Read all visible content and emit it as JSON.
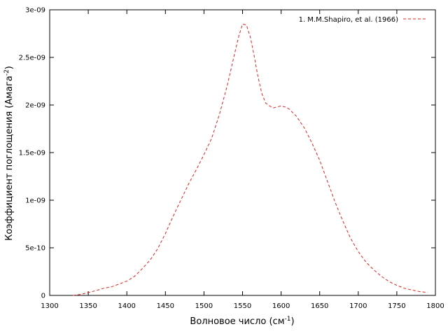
{
  "chart_data": {
    "type": "line",
    "title": "",
    "xlabel": "Волновое число (см",
    "xlabel_sup": "-1",
    "xlabel_end": ")",
    "ylabel": "Коэффициент поглощения (Амага",
    "ylabel_sup": "-2",
    "ylabel_end": ")",
    "xlim": [
      1300,
      1800
    ],
    "ylim": [
      0,
      3e-09
    ],
    "x_ticks": [
      1300,
      1350,
      1400,
      1450,
      1500,
      1550,
      1600,
      1650,
      1700,
      1750,
      1800
    ],
    "x_tick_labels": [
      "1300",
      "1350",
      "1400",
      "1450",
      "1500",
      "1550",
      "1600",
      "1650",
      "1700",
      "1750",
      "1800"
    ],
    "y_ticks": [
      0,
      5e-10,
      1e-09,
      1.5e-09,
      2e-09,
      2.5e-09,
      3e-09
    ],
    "y_tick_labels": [
      "0",
      "5e-10",
      "1e-09",
      "1.5e-09",
      "2e-09",
      "2.5e-09",
      "3e-09"
    ],
    "grid": false,
    "legend_position": "top-right",
    "colors": {
      "series1": "#e0201f",
      "axis": "#000000"
    },
    "series": [
      {
        "name": "1. M.M.Shapiro, et al. (1966)",
        "line_style": "dashed",
        "x": [
          1330,
          1340,
          1350,
          1360,
          1370,
          1380,
          1390,
          1400,
          1410,
          1420,
          1430,
          1440,
          1450,
          1460,
          1470,
          1480,
          1490,
          1500,
          1510,
          1520,
          1530,
          1540,
          1545,
          1550,
          1555,
          1560,
          1565,
          1570,
          1575,
          1580,
          1585,
          1590,
          1595,
          1600,
          1605,
          1610,
          1620,
          1630,
          1640,
          1650,
          1660,
          1670,
          1680,
          1690,
          1700,
          1710,
          1720,
          1730,
          1740,
          1750,
          1760,
          1770,
          1780,
          1790
        ],
        "y": [
          0,
          1e-11,
          3e-11,
          5e-11,
          7.5e-11,
          9e-11,
          1.2e-10,
          1.5e-10,
          2e-10,
          2.8e-10,
          3.7e-10,
          4.9e-10,
          6.5e-10,
          8.3e-10,
          1e-09,
          1.17e-09,
          1.32e-09,
          1.48e-09,
          1.65e-09,
          1.9e-09,
          2.2e-09,
          2.55e-09,
          2.72e-09,
          2.85e-09,
          2.84e-09,
          2.72e-09,
          2.52e-09,
          2.3e-09,
          2.12e-09,
          2.02e-09,
          1.99e-09,
          1.97e-09,
          1.98e-09,
          1.99e-09,
          1.98e-09,
          1.96e-09,
          1.88e-09,
          1.76e-09,
          1.6e-09,
          1.42e-09,
          1.2e-09,
          9.8e-10,
          7.8e-10,
          6e-10,
          4.6e-10,
          3.5e-10,
          2.7e-10,
          2e-10,
          1.45e-10,
          1.05e-10,
          7.5e-11,
          5.5e-11,
          4e-11,
          3e-11
        ]
      }
    ]
  }
}
